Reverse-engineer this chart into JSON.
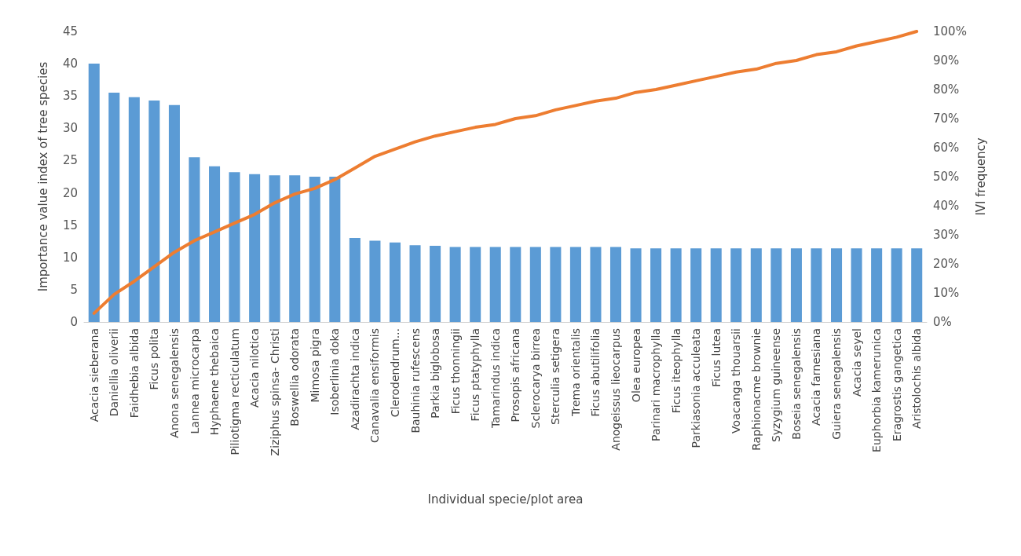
{
  "chart_data": {
    "type": "bar",
    "xlabel": "Individual specie/plot area",
    "ylabel": "Importance value index of tree species",
    "y2label": "IVI frequency",
    "categories": [
      "Acacia sieberana",
      "Daniellia oliverii",
      "Faidhebia albida",
      "Ficus polita",
      "Anona senegalensis",
      "Lannea microcarpa",
      "Hyphaene thebaica",
      "Piliotigma recticulatum",
      "Acacia nilotica",
      "Ziziphus spinsa- Christi",
      "Boswellia odorata",
      "Mimosa pigra",
      "Isoberlinia doka",
      "Azadirachta indica",
      "Canavalia ensiformis",
      "Clerodendrum...",
      "Bauhinia rufescens",
      "Parkia biglobosa",
      "Ficus thonningii",
      "Ficus ptatyphylla",
      "Tamarindus indica",
      "Prosopis africana",
      "Sclerocarya birrea",
      "Sterculia setigera",
      "Trema orientalis",
      "Ficus abutilifolia",
      "Anogeissus lieocarpus",
      "Olea europea",
      "Parinari macrophylla",
      "Ficus iteophylla",
      "Parkiasonia acculeata",
      "Ficus lutea",
      "Voacanga thouarsii",
      "Raphionacme brownie",
      "Syzygium guineense",
      "Boseia senegalensis",
      "Acacia farnesiana",
      "Guiera senegalensis",
      "Acacia seyel",
      "Euphorbia kamerunica",
      "Eragrostis gangetica",
      "Aristolochis albida"
    ],
    "series": [
      {
        "color": "#5b9bd5",
        "values": [
          40,
          35.5,
          34.8,
          34.3,
          33.6,
          25.5,
          24.1,
          23.2,
          22.9,
          22.7,
          22.7,
          22.5,
          22.5,
          13,
          12.6,
          12.3,
          11.9,
          11.8,
          11.6,
          11.6,
          11.6,
          11.6,
          11.6,
          11.6,
          11.6,
          11.6,
          11.6,
          11.4,
          11.4,
          11.4,
          11.4,
          11.4,
          11.4,
          11.4,
          11.4,
          11.4,
          11.4,
          11.4,
          11.4,
          11.4,
          11.4,
          11.4
        ]
      },
      {
        "type": "line",
        "axis": "y2",
        "color": "#ed7d31",
        "values": [
          3,
          9.5,
          14,
          19,
          24,
          28,
          31,
          34,
          37,
          41,
          44,
          46,
          49,
          53,
          57,
          59.5,
          62,
          64,
          65.5,
          67,
          68,
          70,
          71,
          73,
          74.5,
          76,
          77,
          79,
          80,
          81.5,
          83,
          84.5,
          86,
          87,
          89,
          90,
          92,
          93,
          95,
          96.5,
          98,
          100
        ]
      }
    ],
    "ylim": [
      0,
      45
    ],
    "yticks": [
      0,
      5,
      10,
      15,
      20,
      25,
      30,
      35,
      40,
      45
    ],
    "y2lim": [
      0,
      100
    ],
    "y2ticks": [
      {
        "value": 0,
        "label": "0%"
      },
      {
        "value": 10,
        "label": "10%"
      },
      {
        "value": 20,
        "label": "20%"
      },
      {
        "value": 30,
        "label": "30%"
      },
      {
        "value": 40,
        "label": "40%"
      },
      {
        "value": 50,
        "label": "50%"
      },
      {
        "value": 60,
        "label": "60%"
      },
      {
        "value": 70,
        "label": "70%"
      },
      {
        "value": 80,
        "label": "80%"
      },
      {
        "value": 90,
        "label": "90%"
      },
      {
        "value": 100,
        "label": "100%"
      }
    ],
    "grid": false,
    "marker": "none"
  }
}
